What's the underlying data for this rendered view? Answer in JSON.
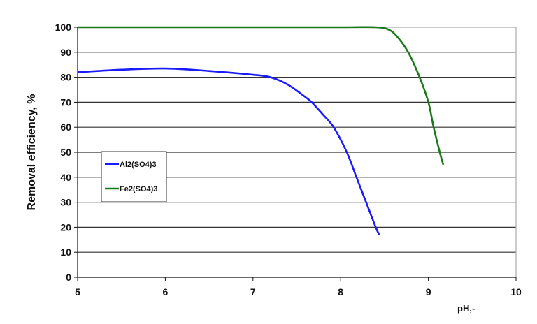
{
  "chart_data": {
    "type": "line",
    "title": "",
    "xlabel": "pH,-",
    "ylabel": "Removal efficiency, %",
    "xlim": [
      5,
      10
    ],
    "ylim": [
      0,
      100
    ],
    "xticks": [
      5,
      6,
      7,
      8,
      9,
      10
    ],
    "yticks": [
      0,
      10,
      20,
      30,
      40,
      50,
      60,
      70,
      80,
      90,
      100
    ],
    "grid": {
      "horizontal": true,
      "vertical": false
    },
    "legend_position": "inside-left-middle",
    "series": [
      {
        "name": "Al2(SO4)3",
        "color": "#1a1aff",
        "x": [
          5.0,
          5.5,
          6.0,
          6.5,
          7.0,
          7.2,
          7.4,
          7.6,
          7.67,
          7.8,
          7.92,
          8.07,
          8.18,
          8.29,
          8.4,
          8.44
        ],
        "y": [
          82,
          83,
          83.5,
          82.5,
          81,
          80,
          77,
          72,
          70,
          65,
          60,
          50,
          40,
          30,
          20,
          17
        ]
      },
      {
        "name": "Fe2(SO4)3",
        "color": "#1a7a1a",
        "x": [
          5.0,
          6.0,
          7.0,
          8.0,
          8.4,
          8.55,
          8.65,
          8.77,
          8.9,
          9.0,
          9.06,
          9.13,
          9.17
        ],
        "y": [
          100,
          100,
          100,
          100,
          100,
          99,
          96,
          90,
          80,
          70,
          60,
          50,
          45
        ]
      }
    ]
  }
}
